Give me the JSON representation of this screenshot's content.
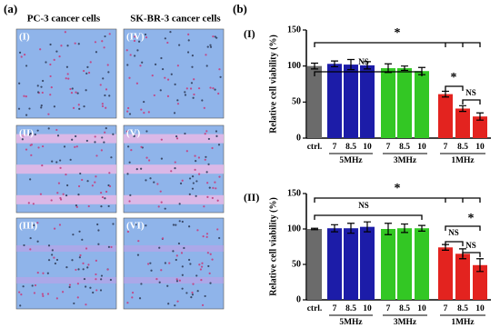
{
  "figure": {
    "panel_a": "(a)",
    "panel_b": "(b)",
    "columns": [
      "PC-3  cancer cells",
      "SK-BR-3 cancer cells"
    ],
    "image_labels": [
      "(I)",
      "(II)",
      "(III)",
      "(IV)",
      "(V)",
      "(VI)"
    ]
  },
  "chart_data": [
    {
      "type": "bar",
      "panel_label": "(I)",
      "y_label": "Relative cell viability (%)",
      "categories": [
        "ctrl.",
        "7",
        "8.5",
        "10",
        "7",
        "8.5",
        "10",
        "7",
        "8.5",
        "10"
      ],
      "groups": [
        "5MHz",
        "3MHz",
        "1MHz"
      ],
      "values": [
        100,
        103,
        102,
        101,
        97,
        97,
        93,
        61,
        41,
        30
      ],
      "errors": [
        4,
        4,
        7,
        5,
        6,
        3,
        5,
        4,
        4,
        5
      ],
      "colors": [
        "#6b6b6b",
        "#1c1ca8",
        "#1c1ca8",
        "#1c1ca8",
        "#33c724",
        "#33c724",
        "#33c724",
        "#e3231f",
        "#e3231f",
        "#e3231f"
      ],
      "annotations": [
        "*",
        "NS",
        "*",
        "NS"
      ],
      "ylim": [
        0,
        150
      ],
      "yticks": [
        0,
        50,
        100,
        150
      ]
    },
    {
      "type": "bar",
      "panel_label": "(II)",
      "y_label": "Relative cell viability (%)",
      "categories": [
        "ctrl.",
        "7",
        "8.5",
        "10",
        "7",
        "8.5",
        "10",
        "7",
        "8.5",
        "10"
      ],
      "groups": [
        "5MHz",
        "3MHz",
        "1MHz"
      ],
      "values": [
        100,
        101,
        101,
        103,
        100,
        101,
        101,
        74,
        65,
        49
      ],
      "errors": [
        1,
        5,
        7,
        7,
        8,
        6,
        4,
        4,
        7,
        9
      ],
      "colors": [
        "#6b6b6b",
        "#1c1ca8",
        "#1c1ca8",
        "#1c1ca8",
        "#33c724",
        "#33c724",
        "#33c724",
        "#e3231f",
        "#e3231f",
        "#e3231f"
      ],
      "annotations": [
        "*",
        "NS",
        "*",
        "NS",
        "NS"
      ],
      "ylim": [
        0,
        150
      ],
      "yticks": [
        0,
        50,
        100,
        150
      ]
    }
  ]
}
